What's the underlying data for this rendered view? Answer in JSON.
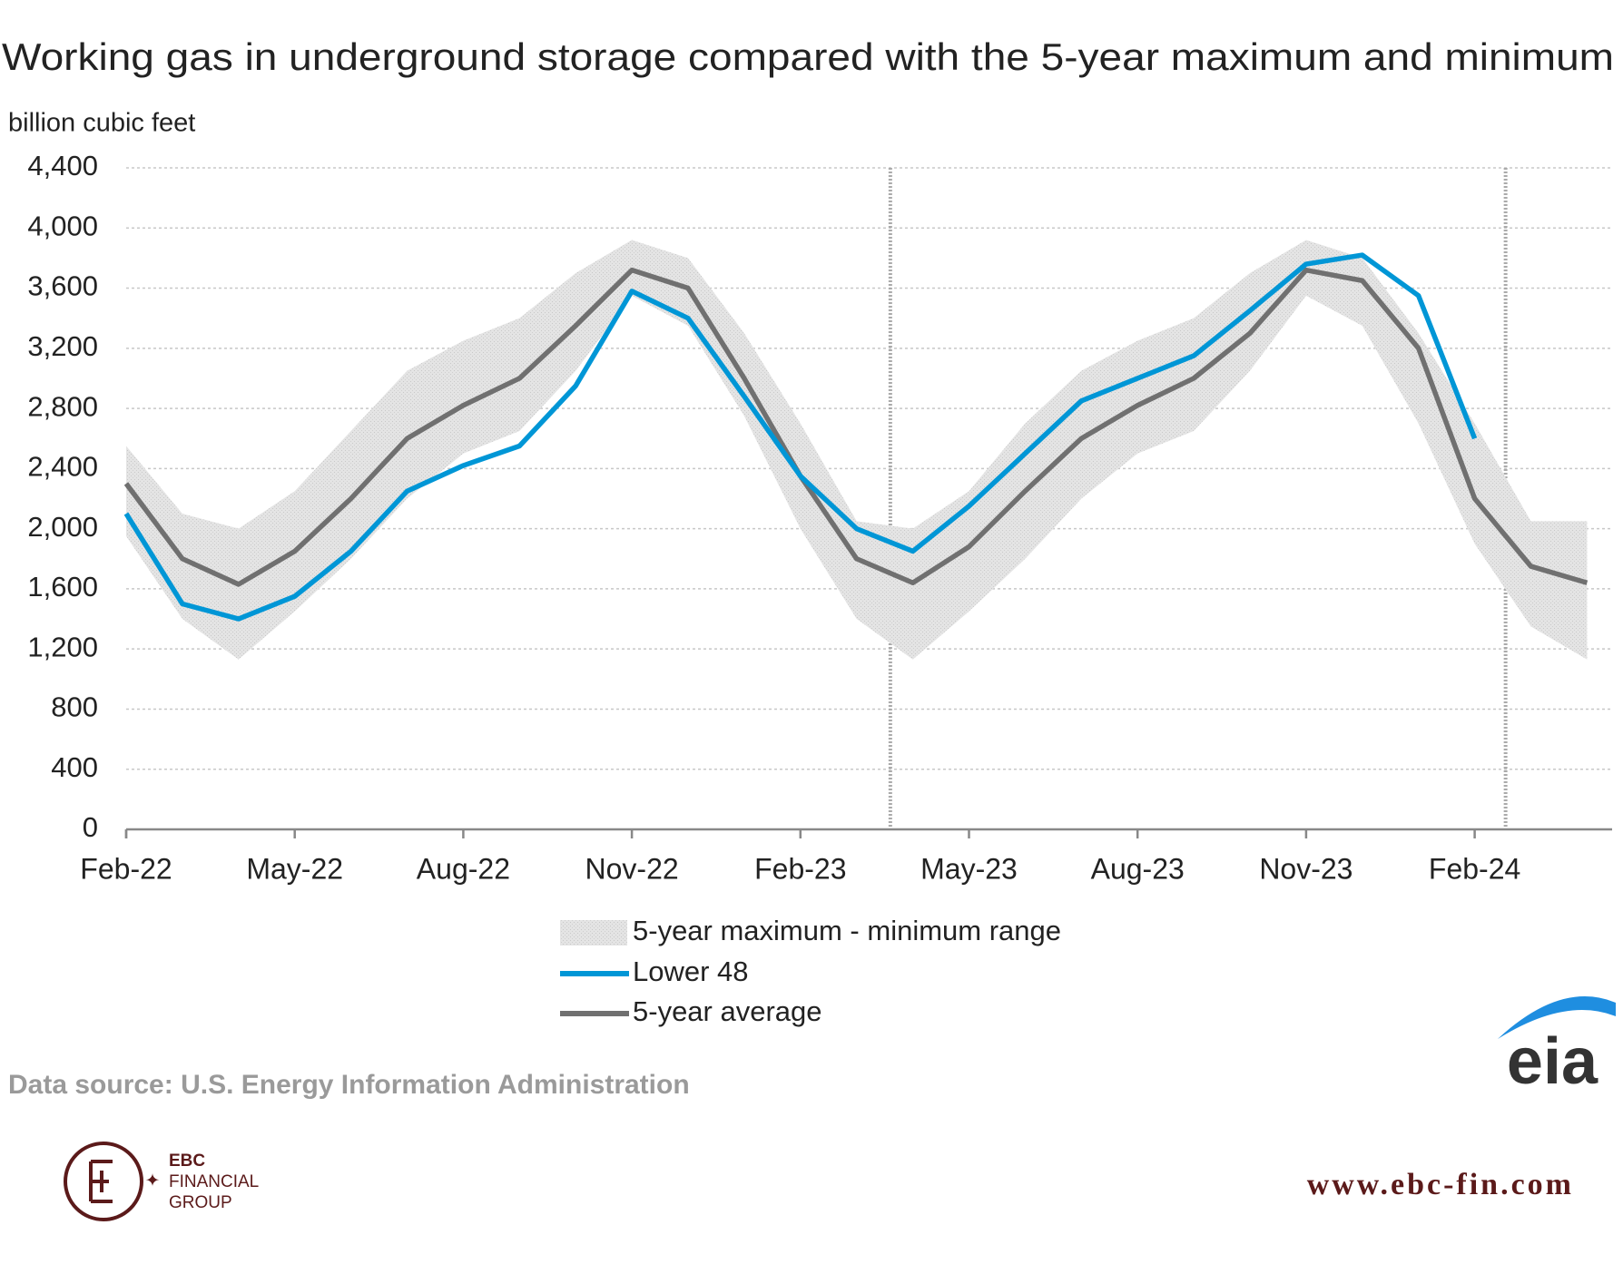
{
  "chart_data": {
    "type": "line",
    "title": "Working gas in underground  storage compared with the 5-year maximum and minimum",
    "y_label": "billion cubic feet",
    "categories": [
      "Feb-22",
      null,
      null,
      "May-22",
      null,
      null,
      "Aug-22",
      null,
      null,
      "Nov-22",
      null,
      null,
      "Feb-23",
      null,
      null,
      "May-23",
      null,
      null,
      "Aug-23",
      null,
      null,
      "Nov-23",
      null,
      null,
      "Feb-24",
      null,
      null
    ],
    "ylim": [
      0,
      4400
    ],
    "yticks": [
      0,
      400,
      800,
      {
        "value": 1200,
        "label": "1,200"
      },
      {
        "value": 1600,
        "label": "1,600"
      },
      {
        "value": 2000,
        "label": "2,000"
      },
      {
        "value": 2400,
        "label": "2,400"
      },
      {
        "value": 2800,
        "label": "2,800"
      },
      {
        "value": 3200,
        "label": "3,200"
      },
      {
        "value": 3600,
        "label": "3,600"
      },
      {
        "value": 4000,
        "label": "4,000"
      },
      {
        "value": 4400,
        "label": "4,400"
      }
    ],
    "grid": true,
    "series": [
      {
        "name": "5-year maximum - minimum range",
        "color": "#d9d9d9",
        "high": [
          2550,
          2100,
          2000,
          2250,
          2650,
          3050,
          3250,
          3400,
          3700,
          3920,
          3800,
          3300,
          2700,
          2050,
          2000,
          2250,
          2700,
          3050,
          3250,
          3400,
          3700,
          3920,
          3800,
          3300,
          2700,
          2050,
          2050
        ],
        "low": [
          1950,
          1400,
          1130,
          1450,
          1800,
          2200,
          2500,
          2650,
          3050,
          3550,
          3350,
          2750,
          2000,
          1400,
          1130,
          1450,
          1800,
          2200,
          2500,
          2650,
          3050,
          3550,
          3350,
          2700,
          1900,
          1350,
          1130
        ]
      },
      {
        "name": "Lower 48",
        "color": "#0096d6",
        "values": [
          2100,
          1500,
          1400,
          1550,
          1850,
          2250,
          2420,
          2550,
          2950,
          3580,
          3400,
          2880,
          2350,
          2000,
          1850,
          2150,
          2500,
          2850,
          3000,
          3150,
          3450,
          3760,
          3820,
          3550,
          2600,
          null,
          null
        ]
      },
      {
        "name": "5-year average",
        "color": "#707070",
        "values": [
          2300,
          1800,
          1630,
          1850,
          2200,
          2600,
          2820,
          3000,
          3350,
          3720,
          3600,
          3000,
          2350,
          1800,
          1640,
          1880,
          2250,
          2600,
          2820,
          3000,
          3300,
          3720,
          3650,
          3200,
          2200,
          1750,
          1640
        ]
      }
    ],
    "source": "Data source:  U.S. Energy Information Administration"
  },
  "branding": {
    "logo": "eia",
    "company": "EBC",
    "company_line2": "FINANCIAL",
    "company_line3": "GROUP",
    "website": "www.ebc-fin.com"
  }
}
